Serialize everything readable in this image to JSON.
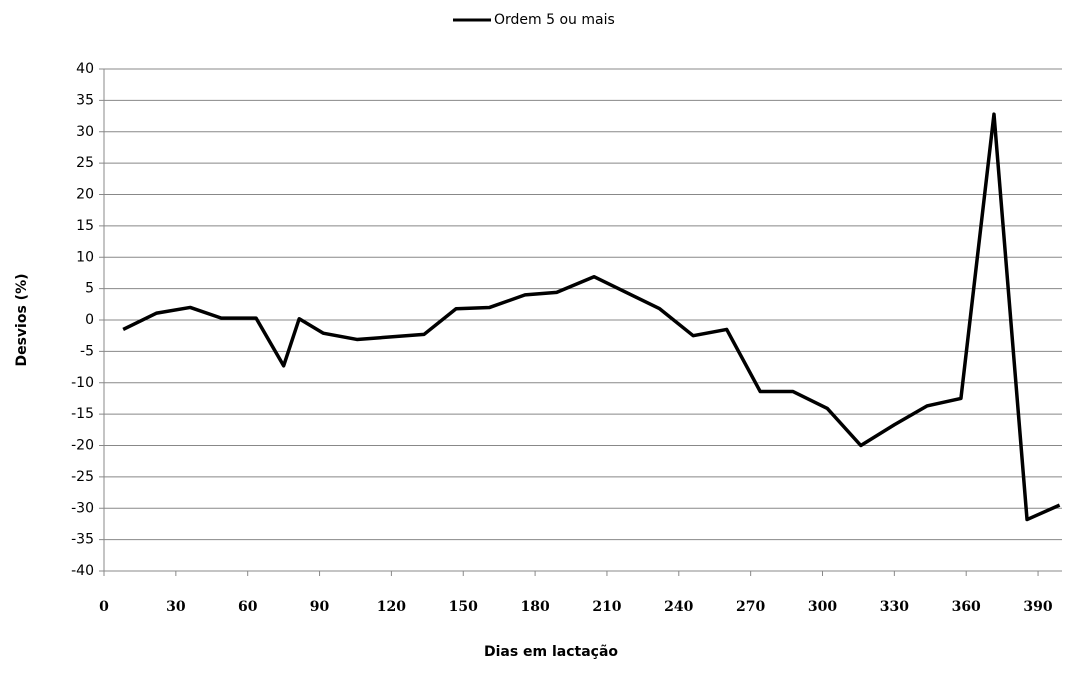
{
  "chart_data": {
    "type": "line",
    "x": [
      8,
      22,
      36,
      49,
      63.5,
      75,
      81.5,
      91.5,
      105.6,
      133.6,
      147,
      161,
      175.8,
      189,
      204.6,
      232,
      246,
      260,
      274,
      287.7,
      302,
      316,
      330,
      343.6,
      357.8,
      371.6,
      385.4,
      399
    ],
    "series": [
      {
        "name": "Ordem 5 ou mais",
        "color": "#000000",
        "values": [
          -1.5,
          1.1,
          2,
          0.3,
          0.3,
          -7.3,
          0.2,
          -2.1,
          -3.1,
          -2.3,
          1.8,
          2,
          4,
          4.4,
          6.9,
          1.8,
          -2.5,
          -1.5,
          -11.4,
          -11.4,
          -14.1,
          -20,
          -16.7,
          -13.7,
          -12.5,
          32.8,
          -31.8,
          -29.5
        ]
      }
    ],
    "xlabel": "Dias em lactação",
    "ylabel": "Desvios (%)",
    "xlim": [
      0,
      400
    ],
    "xticks": [
      0,
      30,
      60,
      90,
      120,
      150,
      180,
      210,
      240,
      270,
      300,
      330,
      360,
      390
    ],
    "ylim": [
      -40,
      40
    ],
    "yticks": [
      -40,
      -35,
      -30,
      -25,
      -20,
      -15,
      -10,
      -5,
      0,
      5,
      10,
      15,
      20,
      25,
      30,
      35,
      40
    ],
    "grid": true,
    "legend": "top"
  }
}
